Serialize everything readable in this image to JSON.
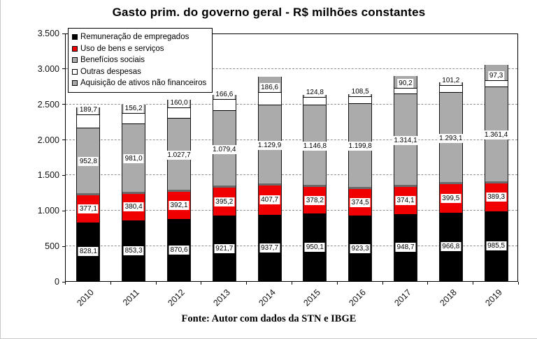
{
  "title": "Gasto prim. do governo geral - R$ milhões constantes",
  "footer": "Fonte: Autor com dados da STN e IBGE",
  "chart_data": {
    "type": "bar",
    "stacked": true,
    "grid": true,
    "legend_position": "top-left",
    "xlabel": "",
    "ylabel": "",
    "ylim": [
      0,
      3500
    ],
    "ytick_labels": [
      "0",
      "500",
      "1.000",
      "1.500",
      "2.000",
      "2.500",
      "3.000",
      "3.500"
    ],
    "ytick_values": [
      0,
      500,
      1000,
      1500,
      2000,
      2500,
      3000,
      3500
    ],
    "categories": [
      "2010",
      "2011",
      "2012",
      "2013",
      "2014",
      "2015",
      "2016",
      "2017",
      "2018",
      "2019"
    ],
    "series": [
      {
        "name": "Remuneração de empregados",
        "color": "#000000",
        "values": [
          828.1,
          853.3,
          870.6,
          921.7,
          937.7,
          950.1,
          923.3,
          948.7,
          966.8,
          985.5
        ],
        "labels": [
          "828,1",
          "853,3",
          "870,6",
          "921,7",
          "937,7",
          "950,1",
          "923,3",
          "948,7",
          "966,8",
          "985,5"
        ]
      },
      {
        "name": "Uso de bens e serviços",
        "color": "#f00000",
        "values": [
          377.1,
          380.4,
          392.1,
          395.2,
          407.7,
          378.2,
          374.5,
          374.1,
          399.5,
          389.3
        ],
        "labels": [
          "377,1",
          "380,4",
          "392,1",
          "395,2",
          "407,7",
          "378,2",
          "374,5",
          "374,1",
          "399,5",
          "389,3"
        ]
      },
      {
        "name": "Benefícios sociais",
        "color": "#ababab",
        "values": [
          952.8,
          981.0,
          1027.7,
          1079.4,
          1129.9,
          1146.8,
          1199.8,
          1314.1,
          1293.1,
          1361.4
        ],
        "labels": [
          "952,8",
          "981,0",
          "1.027,7",
          "1.079,4",
          "1.129,9",
          "1.146,8",
          "1.199,8",
          "1.314,1",
          "1.293,1",
          "1.361,4"
        ]
      },
      {
        "name": "Outras despesas",
        "color": "#ffffff",
        "values": [
          189.7,
          156.2,
          160.0,
          166.6,
          186.6,
          124.8,
          108.5,
          90.2,
          101.2,
          97.3
        ],
        "labels": [
          "189,7",
          "156,2",
          "160,0",
          "166,6",
          "186,6",
          "124,8",
          "108,5",
          "90,2",
          "101,2",
          "97,3"
        ]
      },
      {
        "name": "Aquisição de ativos não financeiros",
        "color": "#a8a8a8",
        "values": [
          105,
          120,
          105,
          60,
          215,
          30,
          25,
          160,
          45,
          210
        ],
        "labels": null,
        "values_estimated_from_bar_tops": true
      }
    ]
  }
}
